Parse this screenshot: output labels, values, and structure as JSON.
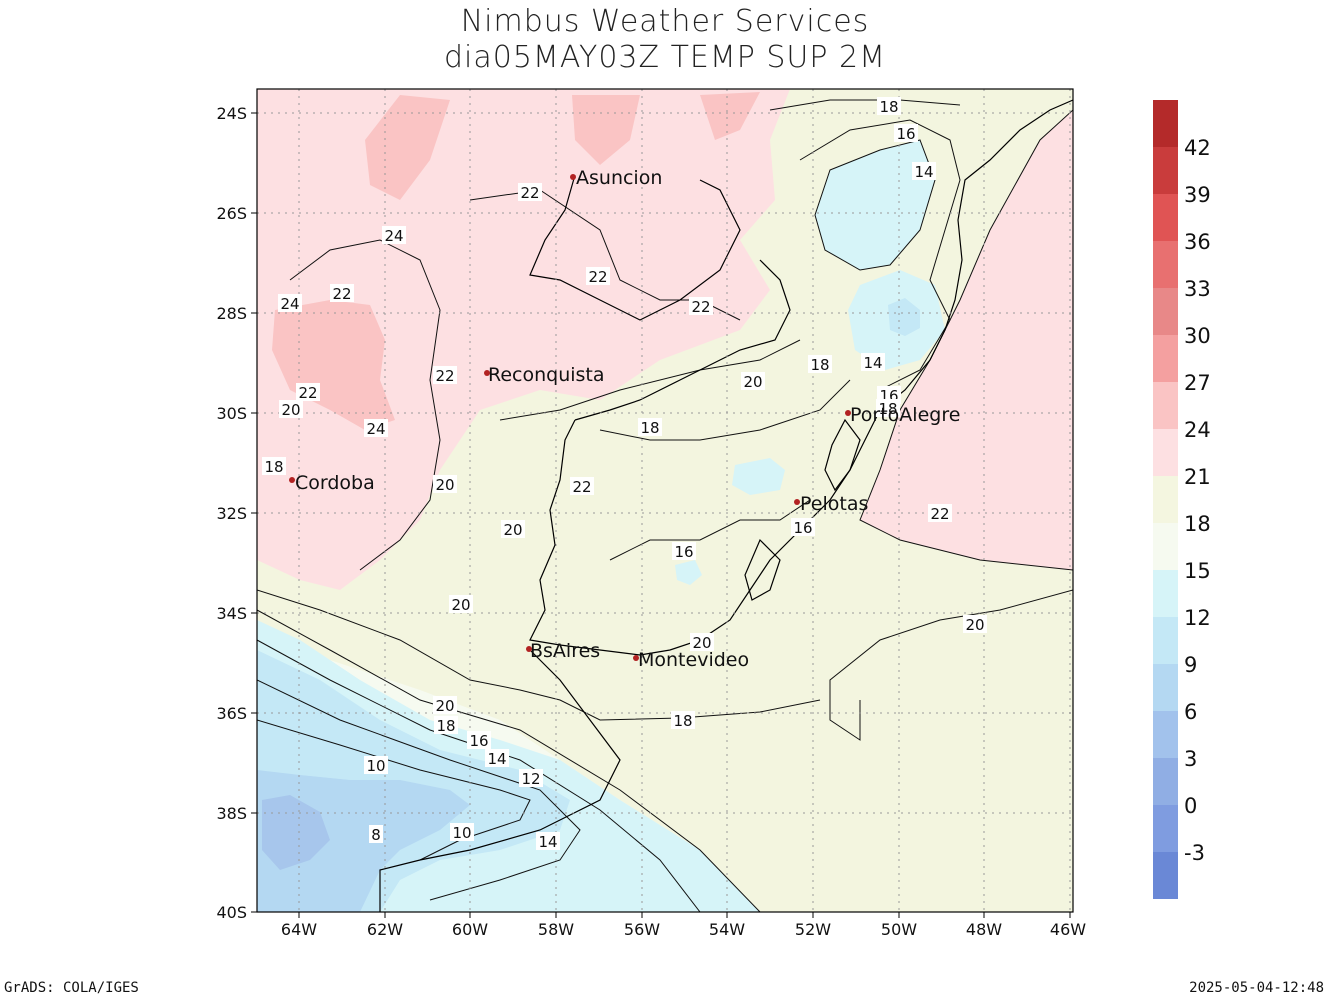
{
  "title": {
    "line1": "Nimbus Weather Services",
    "line2": "dia05MAY03Z TEMP SUP 2M"
  },
  "map": {
    "lat_ticks": [
      "24S",
      "26S",
      "28S",
      "30S",
      "32S",
      "34S",
      "36S",
      "38S",
      "40S"
    ],
    "lon_ticks": [
      "64W",
      "62W",
      "60W",
      "58W",
      "56W",
      "54W",
      "52W",
      "50W",
      "48W",
      "46W"
    ],
    "cities": [
      {
        "name": "Asuncion"
      },
      {
        "name": "Reconquista"
      },
      {
        "name": "Cordoba"
      },
      {
        "name": "PortoAlegre"
      },
      {
        "name": "Pelotas"
      },
      {
        "name": "BsAires"
      },
      {
        "name": "Montevideo"
      }
    ],
    "contour_labels": [
      "18",
      "16",
      "14",
      "22",
      "24",
      "22",
      "22",
      "24",
      "22",
      "22",
      "20",
      "18",
      "14",
      "16",
      "18",
      "22",
      "20",
      "24",
      "18",
      "20",
      "18",
      "22",
      "22",
      "20",
      "20",
      "16",
      "16",
      "20",
      "20",
      "18",
      "20",
      "18",
      "16",
      "14",
      "12",
      "10",
      "10",
      "8",
      "14"
    ]
  },
  "colorbar": {
    "labels": [
      "42",
      "39",
      "36",
      "33",
      "30",
      "27",
      "24",
      "21",
      "18",
      "15",
      "12",
      "9",
      "6",
      "3",
      "0",
      "-3"
    ],
    "colors": [
      "#b42a2a",
      "#c93c3c",
      "#e05454",
      "#e87070",
      "#e88888",
      "#f4a0a0",
      "#fac4c4",
      "#fde0e2",
      "#f4f6e0",
      "#f6faf0",
      "#d6f4f8",
      "#c4e8f6",
      "#b4d8f2",
      "#a2c2ec",
      "#90aee4",
      "#7f9ce0",
      "#6a88d6"
    ]
  },
  "footer": {
    "left": "GrADS: COLA/IGES",
    "right": "2025-05-04-12:48"
  }
}
